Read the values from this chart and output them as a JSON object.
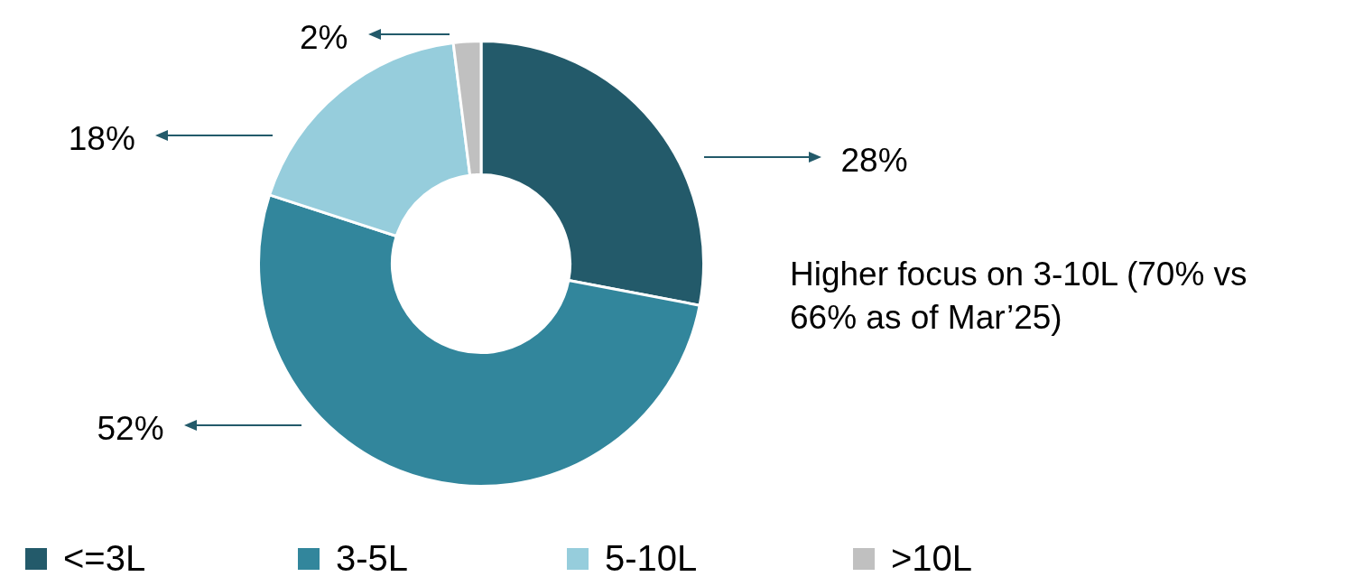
{
  "chart_data": {
    "type": "donut",
    "categories": [
      "<=3L",
      "3-5L",
      "5-10L",
      ">10L"
    ],
    "values": [
      28,
      52,
      18,
      2
    ],
    "colors": [
      "#235a6a",
      "#32869c",
      "#96cddc",
      "#c0c0c0"
    ],
    "value_labels": [
      "28%",
      "52%",
      "18%",
      "2%"
    ],
    "legend": "bottom",
    "annotations": [
      "Higher focus on 3-10L (70% vs 66% as of Mar’25)"
    ]
  }
}
